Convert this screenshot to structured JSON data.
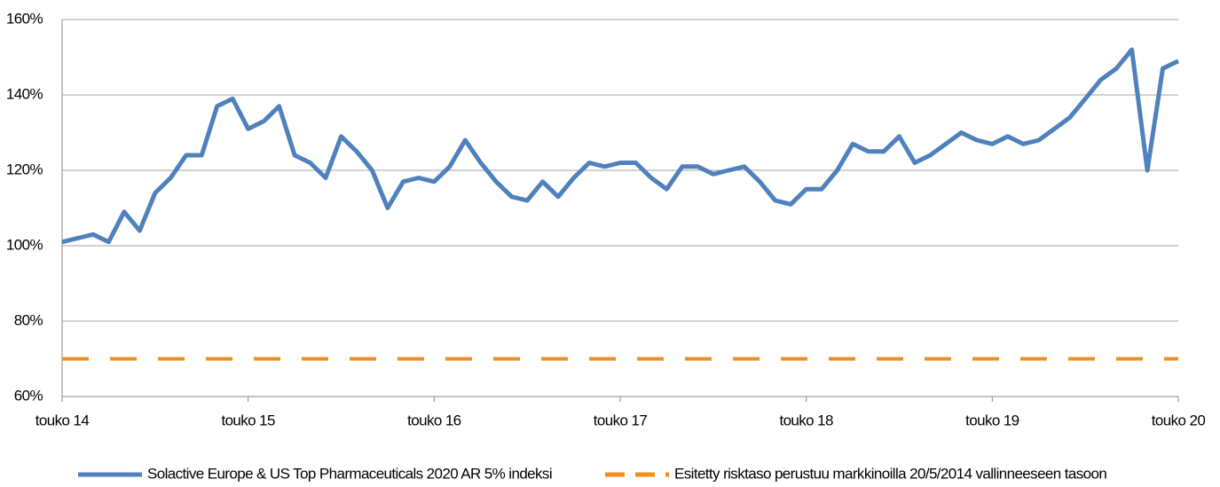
{
  "chart_data": {
    "type": "line",
    "x": [
      "2014-05",
      "2014-06",
      "2014-07",
      "2014-08",
      "2014-09",
      "2014-10",
      "2014-11",
      "2014-12",
      "2015-01",
      "2015-02",
      "2015-03",
      "2015-04",
      "2015-05",
      "2015-06",
      "2015-07",
      "2015-08",
      "2015-09",
      "2015-10",
      "2015-11",
      "2015-12",
      "2016-01",
      "2016-02",
      "2016-03",
      "2016-04",
      "2016-05",
      "2016-06",
      "2016-07",
      "2016-08",
      "2016-09",
      "2016-10",
      "2016-11",
      "2016-12",
      "2017-01",
      "2017-02",
      "2017-03",
      "2017-04",
      "2017-05",
      "2017-06",
      "2017-07",
      "2017-08",
      "2017-09",
      "2017-10",
      "2017-11",
      "2017-12",
      "2018-01",
      "2018-02",
      "2018-03",
      "2018-04",
      "2018-05",
      "2018-06",
      "2018-07",
      "2018-08",
      "2018-09",
      "2018-10",
      "2018-11",
      "2018-12",
      "2019-01",
      "2019-02",
      "2019-03",
      "2019-04",
      "2019-05",
      "2019-06",
      "2019-07",
      "2019-08",
      "2019-09",
      "2019-10",
      "2019-11",
      "2019-12",
      "2020-01",
      "2020-02",
      "2020-03",
      "2020-04",
      "2020-05"
    ],
    "series": [
      {
        "name": "Solactive Europe & US Top Pharmaceuticals 2020 AR 5% indeksi",
        "color": "#4f81bd",
        "dashed": false,
        "values": [
          101,
          102,
          103,
          101,
          109,
          104,
          114,
          118,
          124,
          124,
          137,
          139,
          131,
          133,
          137,
          124,
          122,
          118,
          129,
          125,
          120,
          110,
          117,
          118,
          117,
          121,
          128,
          122,
          117,
          113,
          112,
          117,
          113,
          118,
          122,
          121,
          122,
          122,
          118,
          115,
          121,
          121,
          119,
          120,
          121,
          117,
          112,
          111,
          115,
          115,
          120,
          127,
          125,
          125,
          129,
          122,
          124,
          127,
          130,
          128,
          127,
          129,
          127,
          128,
          131,
          134,
          139,
          144,
          147,
          152,
          120,
          147,
          149
        ]
      },
      {
        "name": "Esitetty risktaso perustuu markkinoilla 20/5/2014 vallinneeseen tasoon",
        "color": "#f28e1c",
        "dashed": true,
        "values": [
          70,
          70,
          70,
          70,
          70,
          70,
          70,
          70,
          70,
          70,
          70,
          70,
          70,
          70,
          70,
          70,
          70,
          70,
          70,
          70,
          70,
          70,
          70,
          70,
          70,
          70,
          70,
          70,
          70,
          70,
          70,
          70,
          70,
          70,
          70,
          70,
          70,
          70,
          70,
          70,
          70,
          70,
          70,
          70,
          70,
          70,
          70,
          70,
          70,
          70,
          70,
          70,
          70,
          70,
          70,
          70,
          70,
          70,
          70,
          70,
          70,
          70,
          70,
          70,
          70,
          70,
          70,
          70,
          70,
          70,
          70,
          70,
          70
        ]
      }
    ],
    "ylim": [
      60,
      160
    ],
    "yticks": [
      {
        "value": 60,
        "label": "60%"
      },
      {
        "value": 80,
        "label": "80%"
      },
      {
        "value": 100,
        "label": "100%"
      },
      {
        "value": 120,
        "label": "120%"
      },
      {
        "value": 140,
        "label": "140%"
      },
      {
        "value": 160,
        "label": "160%"
      }
    ],
    "xticks": [
      {
        "value": "2014-05",
        "label": "touko 14"
      },
      {
        "value": "2015-05",
        "label": "touko 15"
      },
      {
        "value": "2016-05",
        "label": "touko 16"
      },
      {
        "value": "2017-05",
        "label": "touko 17"
      },
      {
        "value": "2018-05",
        "label": "touko 18"
      },
      {
        "value": "2019-05",
        "label": "touko 19"
      },
      {
        "value": "2020-05",
        "label": "touko 20"
      }
    ],
    "grid": true,
    "legend": "bottom"
  }
}
